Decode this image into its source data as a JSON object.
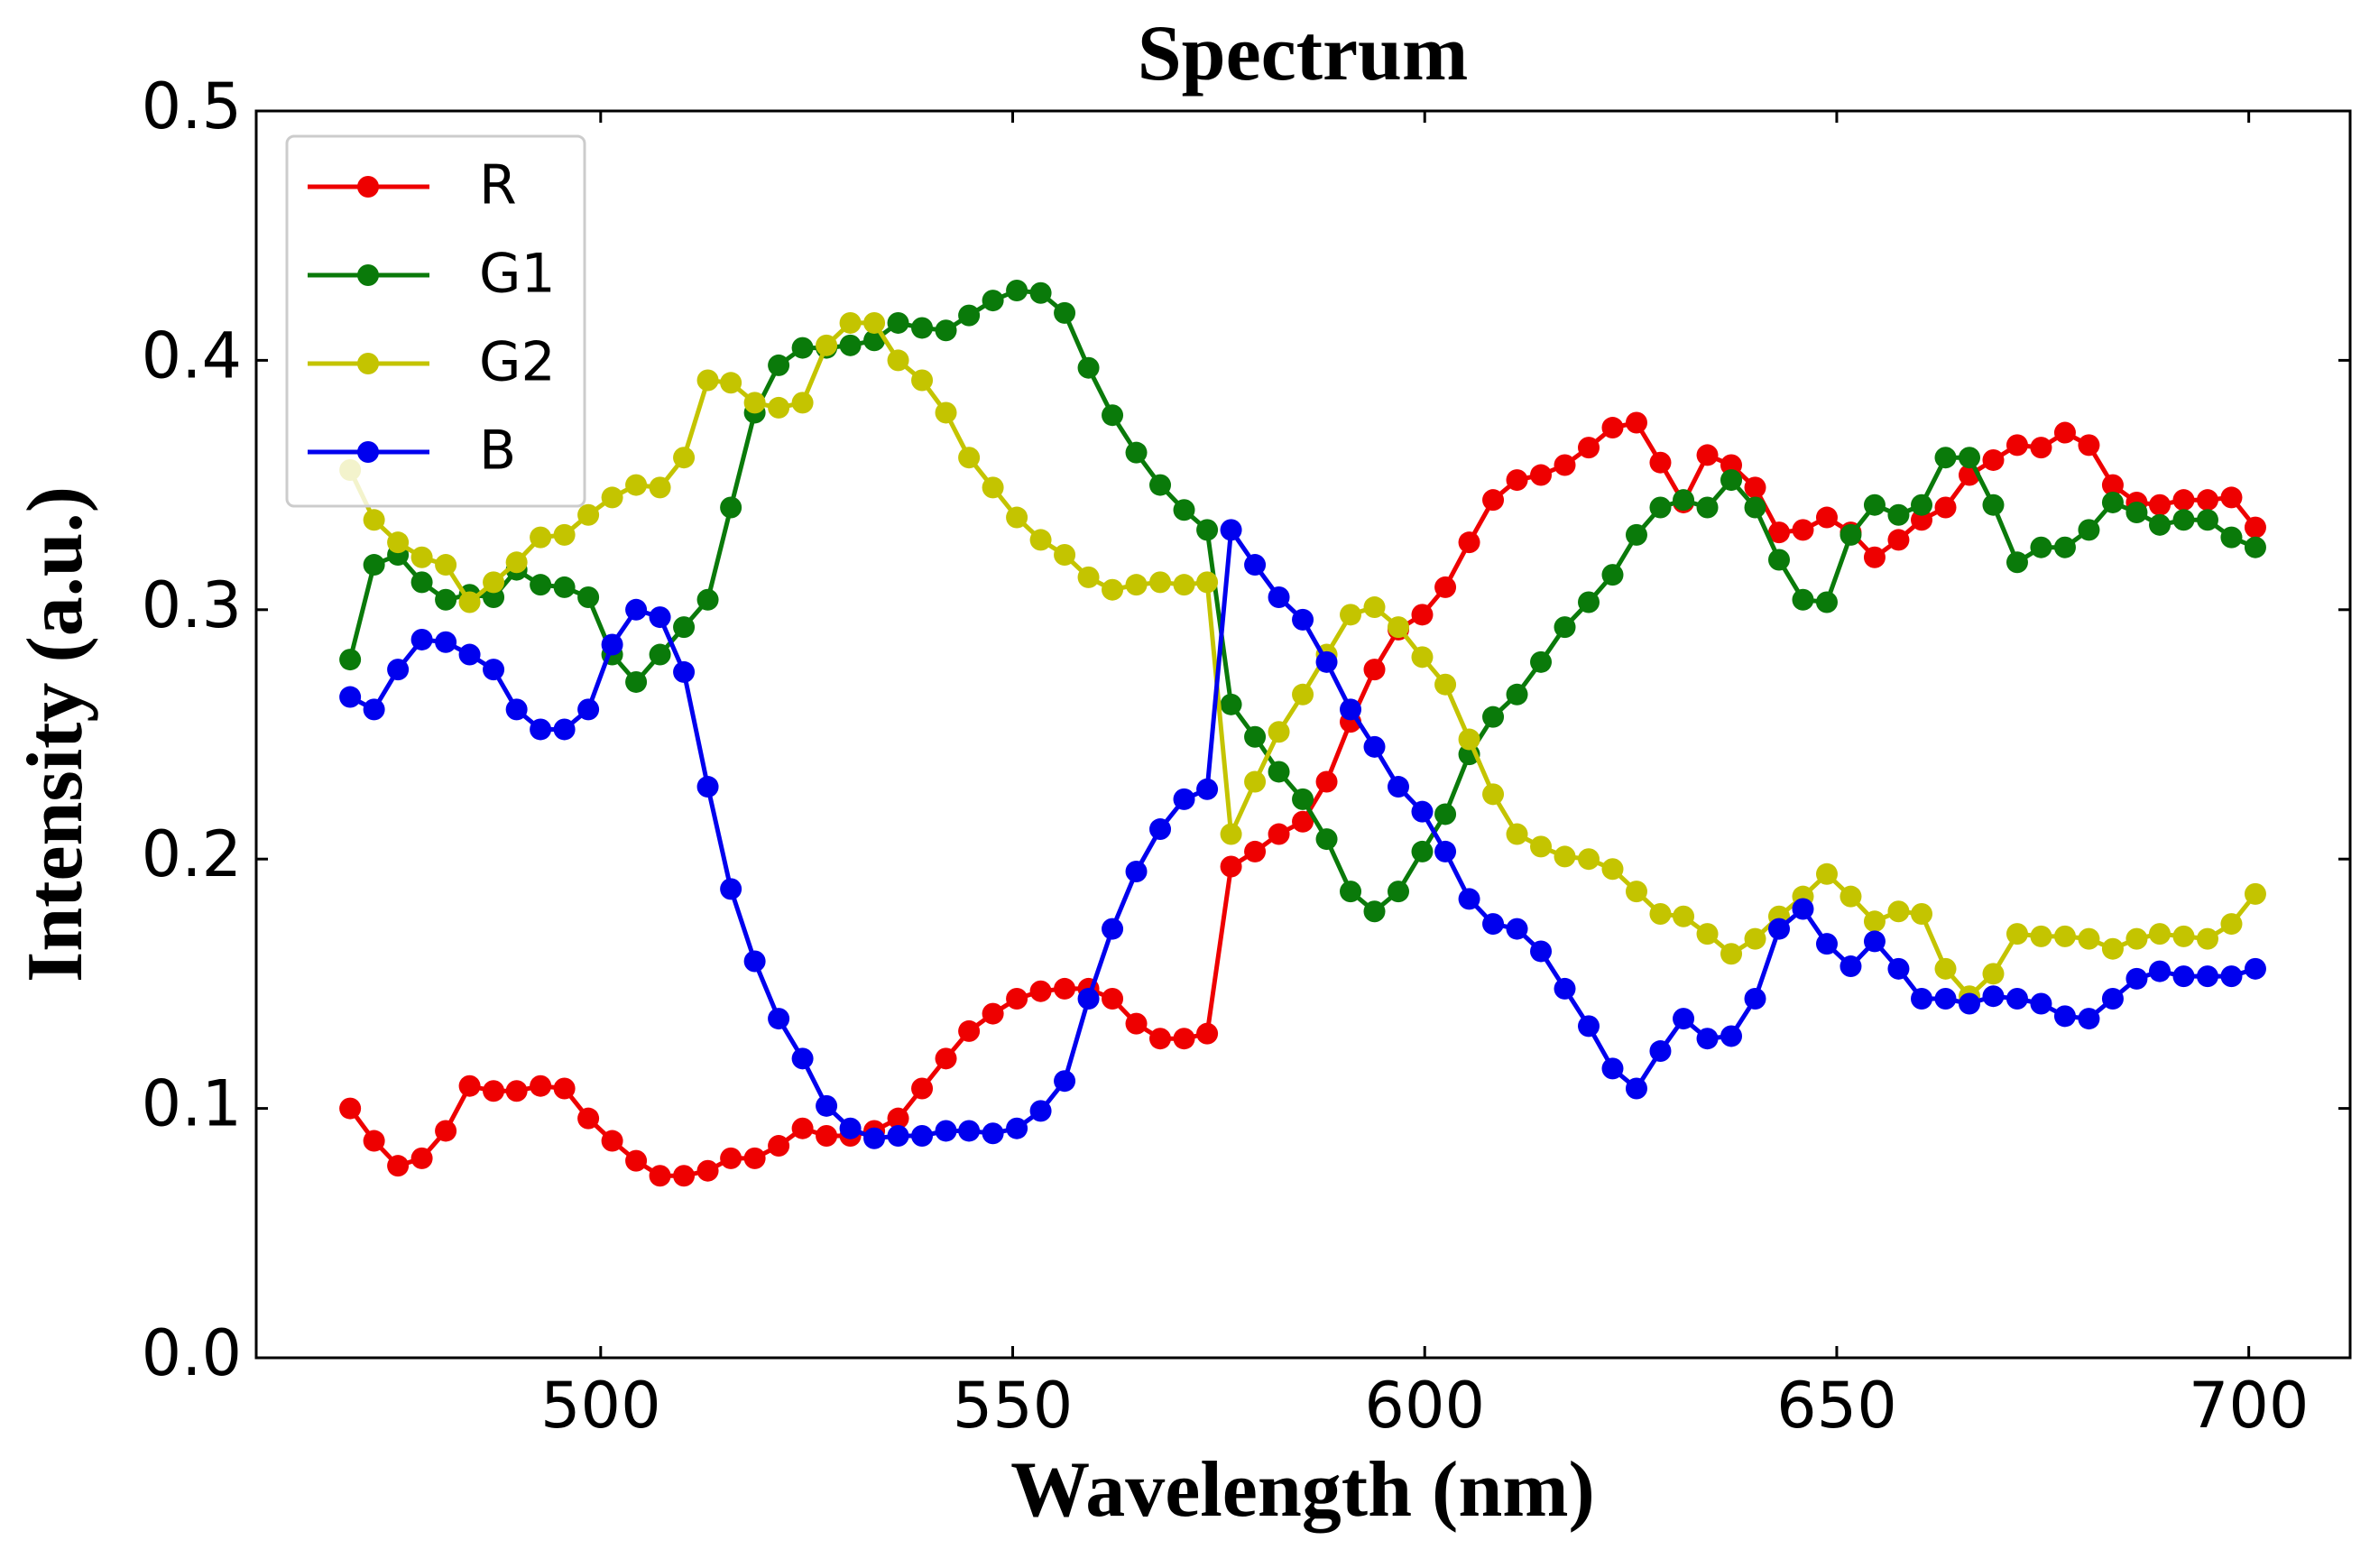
{
  "chart_data": {
    "type": "line",
    "title": "Spectrum",
    "xlabel": "Wavelength (nm)",
    "ylabel": "Intensity (a.u.)",
    "x": [
      469.6,
      472.5,
      475.4,
      478.3,
      481.2,
      484.1,
      487.0,
      489.8,
      492.7,
      495.6,
      498.5,
      501.4,
      504.3,
      507.2,
      510.1,
      513.0,
      515.8,
      518.7,
      521.6,
      524.5,
      527.4,
      530.3,
      533.2,
      536.1,
      539.0,
      541.9,
      544.7,
      547.6,
      550.5,
      553.4,
      556.3,
      559.2,
      562.1,
      565.0,
      567.9,
      570.8,
      573.6,
      576.5,
      579.4,
      582.3,
      585.2,
      588.1,
      591.0,
      593.9,
      596.8,
      599.7,
      602.5,
      605.4,
      608.3,
      611.2,
      614.1,
      617.0,
      619.9,
      622.8,
      625.7,
      628.6,
      631.4,
      634.3,
      637.2,
      640.1,
      643.0,
      645.9,
      648.8,
      651.7,
      654.6,
      657.5,
      660.3,
      663.2,
      666.1,
      669.0,
      671.9,
      674.8,
      677.7,
      680.6,
      683.5,
      686.4,
      689.2,
      692.1,
      695.0,
      697.9,
      700.8
    ],
    "series": [
      {
        "name": "R",
        "color": "#ee0000",
        "values": [
          0.1,
          0.087,
          0.077,
          0.08,
          0.091,
          0.109,
          0.107,
          0.107,
          0.109,
          0.108,
          0.096,
          0.087,
          0.079,
          0.073,
          0.073,
          0.075,
          0.08,
          0.08,
          0.085,
          0.092,
          0.089,
          0.089,
          0.091,
          0.096,
          0.108,
          0.12,
          0.131,
          0.138,
          0.144,
          0.147,
          0.148,
          0.148,
          0.144,
          0.134,
          0.128,
          0.128,
          0.13,
          0.197,
          0.203,
          0.21,
          0.215,
          0.231,
          0.255,
          0.276,
          0.292,
          0.298,
          0.309,
          0.327,
          0.344,
          0.352,
          0.354,
          0.358,
          0.365,
          0.373,
          0.375,
          0.359,
          0.343,
          0.362,
          0.358,
          0.349,
          0.331,
          0.332,
          0.337,
          0.331,
          0.321,
          0.328,
          0.336,
          0.341,
          0.354,
          0.36,
          0.366,
          0.365,
          0.371,
          0.366,
          0.35,
          0.343,
          0.342,
          0.344,
          0.344,
          0.345,
          0.333
        ]
      },
      {
        "name": "G1",
        "color": "#0a7a0a",
        "values": [
          0.28,
          0.318,
          0.322,
          0.311,
          0.304,
          0.306,
          0.305,
          0.316,
          0.31,
          0.309,
          0.305,
          0.282,
          0.271,
          0.282,
          0.293,
          0.304,
          0.341,
          0.379,
          0.398,
          0.405,
          0.405,
          0.406,
          0.408,
          0.415,
          0.413,
          0.412,
          0.418,
          0.424,
          0.428,
          0.427,
          0.419,
          0.397,
          0.378,
          0.363,
          0.35,
          0.34,
          0.332,
          0.262,
          0.249,
          0.235,
          0.224,
          0.208,
          0.187,
          0.179,
          0.187,
          0.203,
          0.218,
          0.242,
          0.257,
          0.266,
          0.279,
          0.293,
          0.303,
          0.314,
          0.33,
          0.341,
          0.344,
          0.341,
          0.352,
          0.341,
          0.32,
          0.304,
          0.303,
          0.33,
          0.342,
          0.338,
          0.342,
          0.361,
          0.361,
          0.342,
          0.319,
          0.325,
          0.325,
          0.332,
          0.343,
          0.339,
          0.334,
          0.336,
          0.336,
          0.329,
          0.325
        ]
      },
      {
        "name": "G2",
        "color": "#c4c400",
        "values": [
          0.356,
          0.336,
          0.327,
          0.321,
          0.318,
          0.303,
          0.311,
          0.319,
          0.329,
          0.33,
          0.338,
          0.345,
          0.35,
          0.349,
          0.361,
          0.392,
          0.391,
          0.383,
          0.381,
          0.383,
          0.406,
          0.415,
          0.415,
          0.4,
          0.392,
          0.379,
          0.361,
          0.349,
          0.337,
          0.328,
          0.322,
          0.313,
          0.308,
          0.31,
          0.311,
          0.31,
          0.311,
          0.21,
          0.231,
          0.251,
          0.266,
          0.282,
          0.298,
          0.301,
          0.293,
          0.281,
          0.27,
          0.248,
          0.226,
          0.21,
          0.205,
          0.201,
          0.2,
          0.196,
          0.187,
          0.178,
          0.177,
          0.17,
          0.162,
          0.168,
          0.177,
          0.185,
          0.194,
          0.185,
          0.175,
          0.179,
          0.178,
          0.156,
          0.145,
          0.154,
          0.17,
          0.169,
          0.169,
          0.168,
          0.164,
          0.168,
          0.17,
          0.169,
          0.168,
          0.174,
          0.186
        ]
      },
      {
        "name": "B",
        "color": "#0000ee",
        "values": [
          0.265,
          0.26,
          0.276,
          0.288,
          0.287,
          0.282,
          0.276,
          0.26,
          0.252,
          0.252,
          0.26,
          0.286,
          0.3,
          0.297,
          0.275,
          0.229,
          0.188,
          0.159,
          0.136,
          0.12,
          0.101,
          0.092,
          0.088,
          0.089,
          0.089,
          0.091,
          0.091,
          0.09,
          0.092,
          0.099,
          0.111,
          0.144,
          0.172,
          0.195,
          0.212,
          0.224,
          0.228,
          0.332,
          0.318,
          0.305,
          0.296,
          0.279,
          0.26,
          0.245,
          0.229,
          0.219,
          0.203,
          0.184,
          0.174,
          0.172,
          0.163,
          0.148,
          0.133,
          0.116,
          0.108,
          0.123,
          0.136,
          0.128,
          0.129,
          0.144,
          0.172,
          0.18,
          0.166,
          0.157,
          0.167,
          0.156,
          0.144,
          0.144,
          0.142,
          0.145,
          0.144,
          0.142,
          0.137,
          0.136,
          0.144,
          0.152,
          0.155,
          0.153,
          0.153,
          0.153,
          0.156
        ]
      }
    ],
    "xlim": [
      458.2,
      712.3
    ],
    "ylim": [
      0,
      0.5
    ],
    "xticks": [
      500,
      550,
      600,
      650,
      700
    ],
    "yticks": [
      {
        "value": 0,
        "label": "0.0"
      },
      0.1,
      0.2,
      0.3,
      0.4,
      0.5
    ],
    "legend": "upper left",
    "grid": false
  }
}
